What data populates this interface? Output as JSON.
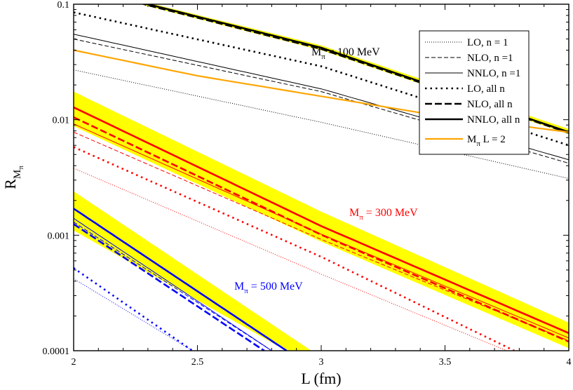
{
  "chart_data": {
    "type": "line",
    "xlabel": "L (fm)",
    "ylabel": {
      "main": "R",
      "sub": "M",
      "subsub": "π"
    },
    "xlim": [
      2,
      4
    ],
    "ylim": [
      0.0001,
      0.1
    ],
    "yscale": "log",
    "x_ticks": [
      "2",
      "2.5",
      "3",
      "3.5",
      "4"
    ],
    "y_ticks": [
      "0.0001",
      "0.001",
      "0.01",
      "0.1"
    ],
    "grid": false,
    "legend_position": "top-right",
    "legend": [
      {
        "label": "LO, n = 1",
        "style": "thin-dotted"
      },
      {
        "label": "NLO, n =1",
        "style": "thin-dashed"
      },
      {
        "label": "NNLO, n =1",
        "style": "thin-solid"
      },
      {
        "label": "LO, all n",
        "style": "thick-dotted"
      },
      {
        "label": "NLO, all n",
        "style": "thick-dashed"
      },
      {
        "label": "NNLO, all n",
        "style": "thick-solid"
      },
      {
        "label_main": "M",
        "label_sub": "π",
        "label_rest": " L = 2",
        "style": "orange-solid"
      }
    ],
    "annotations": [
      {
        "main": "M",
        "sub": "π",
        "rest": " = 100 MeV",
        "color": "#000000"
      },
      {
        "main": "M",
        "sub": "π",
        "rest": " = 300 MeV",
        "color": "#ff0000"
      },
      {
        "main": "M",
        "sub": "π",
        "rest": " = 500 MeV",
        "color": "#0000ff"
      }
    ],
    "colors": {
      "100": "#000000",
      "300": "#ff0000",
      "500": "#0000ff",
      "band": "#ffff00",
      "ml2": "#ffa500"
    },
    "series": [
      {
        "mass": "100",
        "style": "thin-dotted",
        "x": [
          2,
          3,
          4
        ],
        "y": [
          0.027,
          0.0095,
          0.0031
        ]
      },
      {
        "mass": "100",
        "style": "thin-dashed",
        "x": [
          2,
          3,
          4
        ],
        "y": [
          0.05,
          0.0175,
          0.0042
        ]
      },
      {
        "mass": "100",
        "style": "thin-solid",
        "x": [
          2,
          3,
          4
        ],
        "y": [
          0.055,
          0.0185,
          0.0045
        ]
      },
      {
        "mass": "100",
        "style": "thick-dotted",
        "x": [
          2,
          3,
          4
        ],
        "y": [
          0.085,
          0.029,
          0.006
        ]
      },
      {
        "mass": "100",
        "style": "thick-dashed",
        "x": [
          2,
          2.3,
          3,
          4
        ],
        "y": [
          0.15,
          0.098,
          0.041,
          0.0077
        ]
      },
      {
        "mass": "100",
        "style": "thick-solid",
        "x": [
          2,
          2.3,
          3,
          4
        ],
        "y": [
          0.16,
          0.1,
          0.042,
          0.0078
        ]
      },
      {
        "mass": "100",
        "style": "band",
        "x": [
          2,
          2.3,
          3,
          4
        ],
        "upper": [
          0.17,
          0.103,
          0.044,
          0.0083
        ],
        "lower": [
          0.15,
          0.096,
          0.04,
          0.0075
        ]
      },
      {
        "mass": "ml2",
        "style": "orange-solid",
        "x": [
          2,
          2.5,
          3.4,
          4
        ],
        "y": [
          0.04,
          0.024,
          0.0115,
          0.0078
        ]
      },
      {
        "mass": "300",
        "style": "thin-dotted",
        "x": [
          2,
          3,
          4
        ],
        "y": [
          0.0038,
          0.00046,
          6e-05
        ]
      },
      {
        "mass": "300",
        "style": "thin-dashed",
        "x": [
          2,
          3,
          4
        ],
        "y": [
          0.0078,
          0.00092,
          0.000122
        ]
      },
      {
        "mass": "300",
        "style": "thin-solid",
        "x": [
          2,
          3,
          4
        ],
        "y": [
          0.0092,
          0.00102,
          0.000129
        ]
      },
      {
        "mass": "300",
        "style": "thick-dotted",
        "x": [
          2,
          3,
          3.78
        ],
        "y": [
          0.0058,
          0.00065,
          0.0001
        ]
      },
      {
        "mass": "300",
        "style": "thick-dashed",
        "x": [
          2,
          3,
          4
        ],
        "y": [
          0.0105,
          0.00101,
          0.00012
        ]
      },
      {
        "mass": "300",
        "style": "thick-solid",
        "x": [
          2,
          3,
          4
        ],
        "y": [
          0.0128,
          0.0012,
          0.000142
        ]
      },
      {
        "mass": "300",
        "style": "band",
        "x": [
          2,
          3,
          4
        ],
        "upper": [
          0.0175,
          0.0016,
          0.000175
        ],
        "lower": [
          0.0088,
          0.00088,
          0.000105
        ]
      },
      {
        "mass": "500",
        "style": "thin-dotted",
        "x": [
          2,
          2.48
        ],
        "y": [
          0.00042,
          0.0001
        ]
      },
      {
        "mass": "500",
        "style": "thin-dashed",
        "x": [
          2,
          2.8
        ],
        "y": [
          0.0013,
          0.0001
        ]
      },
      {
        "mass": "500",
        "style": "thin-solid",
        "x": [
          2,
          2.8
        ],
        "y": [
          0.0014,
          0.0001
        ]
      },
      {
        "mass": "500",
        "style": "thick-dotted",
        "x": [
          2,
          2.48
        ],
        "y": [
          0.00052,
          0.0001
        ]
      },
      {
        "mass": "500",
        "style": "thick-dashed",
        "x": [
          2,
          2.77
        ],
        "y": [
          0.00125,
          0.0001
        ]
      },
      {
        "mass": "500",
        "style": "thick-solid",
        "x": [
          2,
          2.86
        ],
        "y": [
          0.0017,
          0.0001
        ]
      },
      {
        "mass": "500",
        "style": "band",
        "x": [
          2,
          2.96
        ],
        "upper": [
          0.0024,
          0.0001
        ],
        "lower": [
          0.0011,
          7.55e-05
        ]
      }
    ]
  }
}
